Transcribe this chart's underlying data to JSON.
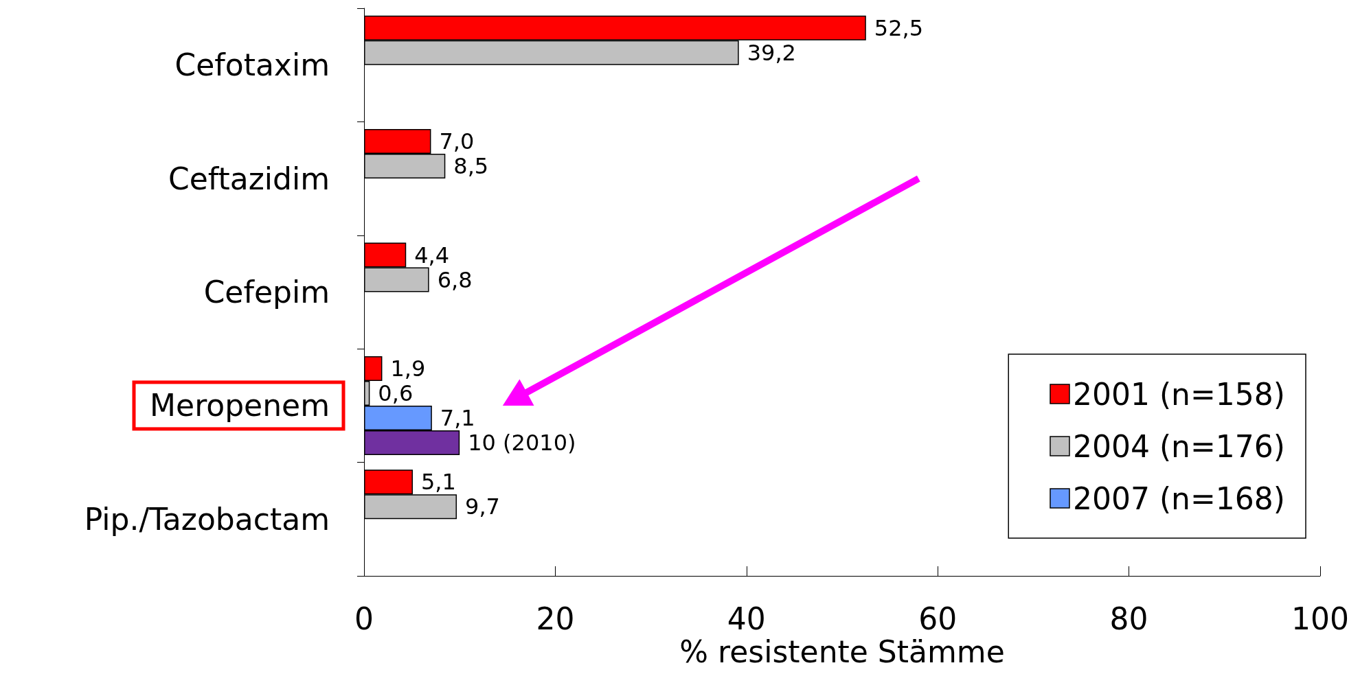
{
  "chart_data": {
    "type": "bar",
    "orientation": "horizontal",
    "categories": [
      "Cefotaxim",
      "Ceftazidim",
      "Cefepim",
      "Meropenem",
      "Pip./Tazobactam"
    ],
    "series": [
      {
        "name": "2001 (n=158)",
        "color": "#ff0000",
        "values": [
          52.5,
          7.0,
          4.4,
          1.9,
          5.1
        ],
        "value_labels": [
          "52,5",
          "7,0",
          "4,4",
          "1,9",
          "5,1"
        ]
      },
      {
        "name": "2004 (n=176)",
        "color": "#c0c0c0",
        "values": [
          39.2,
          8.5,
          6.8,
          0.6,
          9.7
        ],
        "value_labels": [
          "39,2",
          "8,5",
          "6,8",
          "0,6",
          "9,7"
        ]
      },
      {
        "name": "2007 (n=168)",
        "color": "#6699ff",
        "values": [
          null,
          null,
          null,
          7.1,
          null
        ],
        "value_labels": [
          null,
          null,
          null,
          "7,1",
          null
        ]
      },
      {
        "color": "#7030a0",
        "values": [
          null,
          null,
          null,
          10,
          null
        ],
        "value_labels": [
          null,
          null,
          null,
          "10 (2010)",
          null
        ]
      }
    ],
    "xlabel": "% resistente Stämme",
    "xlim": [
      0,
      100
    ],
    "xticks": [
      0,
      20,
      40,
      60,
      80,
      100
    ],
    "grid": false,
    "legend": "bottom right"
  }
}
